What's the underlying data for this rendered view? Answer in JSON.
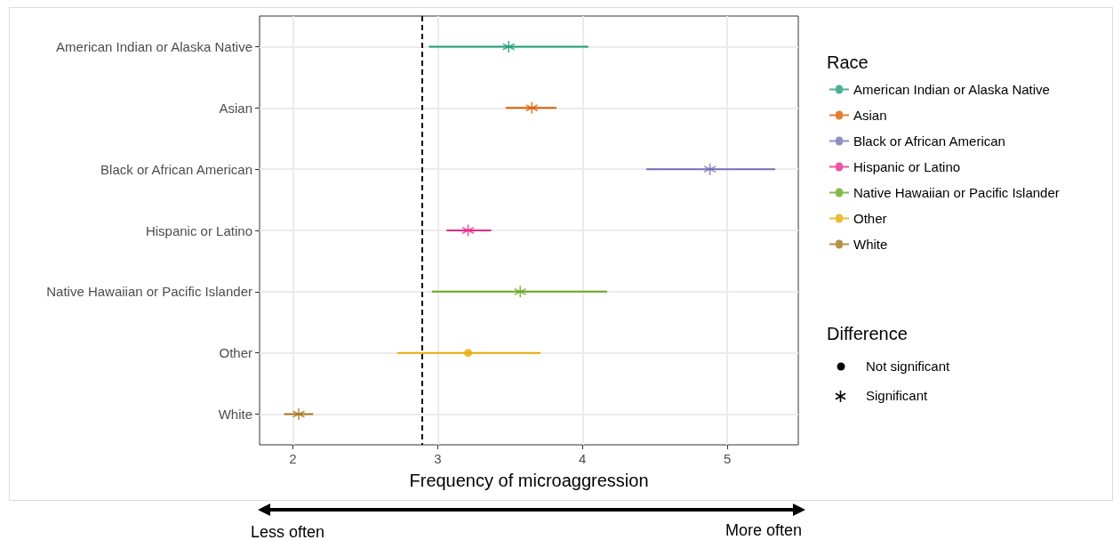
{
  "chart_data": {
    "type": "scatter",
    "orientation": "horizontal",
    "categories": [
      "American Indian or Alaska Native",
      "Asian",
      "Black or African American",
      "Hispanic or Latino",
      "Native Hawaiian or Pacific Islander",
      "Other",
      "White"
    ],
    "xlabel": "Frequency of microaggression",
    "legend_title": "Race",
    "legend": "right",
    "grid": true,
    "xlim": [
      1.77,
      5.49
    ],
    "xticks": [
      2,
      3,
      4,
      5
    ],
    "series": [
      {
        "name": "American Indian or Alaska Native",
        "color": "#1b9e77",
        "marker": "cross",
        "values": [
          3.49,
          null,
          null,
          null,
          null,
          null,
          null
        ],
        "errors": [
          [
            2.94,
            4.04
          ],
          null,
          null,
          null,
          null,
          null,
          null
        ]
      },
      {
        "name": "Asian",
        "color": "#d95f02",
        "marker": "cross",
        "values": [
          null,
          3.65,
          null,
          null,
          null,
          null,
          null
        ],
        "errors": [
          null,
          [
            3.47,
            3.82
          ],
          null,
          null,
          null,
          null,
          null
        ]
      },
      {
        "name": "Black or African American",
        "color": "#7570b3",
        "marker": "cross",
        "values": [
          null,
          null,
          4.88,
          null,
          null,
          null,
          null
        ],
        "errors": [
          null,
          null,
          [
            4.44,
            5.33
          ],
          null,
          null,
          null,
          null
        ]
      },
      {
        "name": "Hispanic or Latino",
        "color": "#e7298a",
        "marker": "cross",
        "values": [
          null,
          null,
          null,
          3.21,
          null,
          null,
          null
        ],
        "errors": [
          null,
          null,
          null,
          [
            3.06,
            3.37
          ],
          null,
          null,
          null
        ]
      },
      {
        "name": "Native Hawaiian or Pacific Islander",
        "color": "#66a61e",
        "marker": "cross",
        "values": [
          null,
          null,
          null,
          null,
          3.57,
          null,
          null
        ],
        "errors": [
          null,
          null,
          null,
          null,
          [
            2.96,
            4.17
          ],
          null,
          null
        ]
      },
      {
        "name": "Other",
        "color": "#e6ab02",
        "marker": "circle",
        "values": [
          null,
          null,
          null,
          null,
          null,
          3.21,
          null
        ],
        "errors": [
          null,
          null,
          null,
          null,
          null,
          [
            2.72,
            3.71
          ],
          null
        ]
      },
      {
        "name": "White",
        "color": "#a6761d",
        "marker": "cross",
        "values": [
          null,
          null,
          null,
          null,
          null,
          null,
          2.04
        ],
        "errors": [
          null,
          null,
          null,
          null,
          null,
          null,
          [
            1.94,
            2.14
          ]
        ]
      }
    ],
    "ref_lines": [
      {
        "axis": "x",
        "value": 2.89,
        "color": "#000000",
        "line_style": "dashed"
      }
    ],
    "annotations": [
      "Difference",
      "Not significant",
      "Significant",
      "Less often",
      "More often"
    ]
  }
}
